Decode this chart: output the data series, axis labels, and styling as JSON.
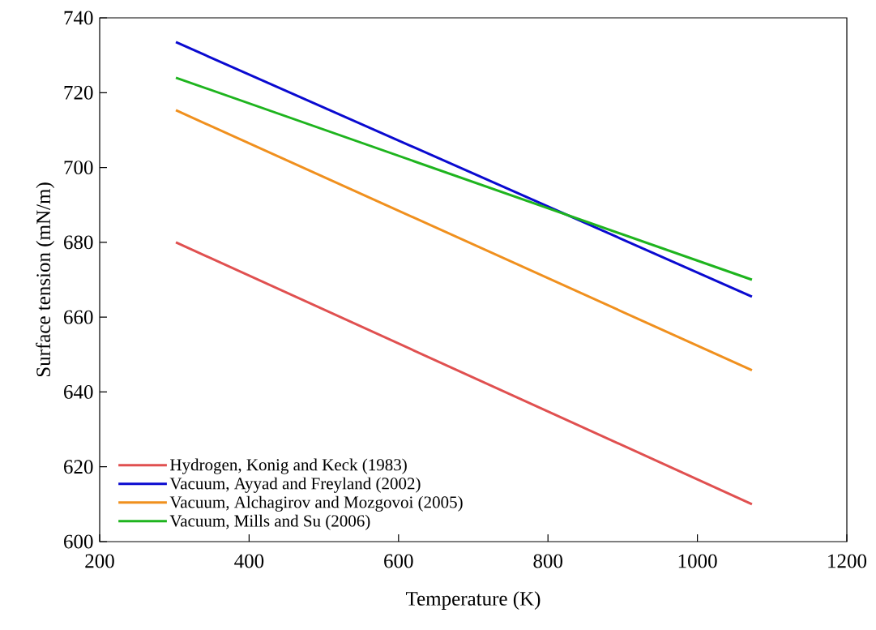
{
  "chart_data": {
    "type": "line",
    "xlabel": "Temperature (K)",
    "ylabel": "Surface tension (mN/m)",
    "xlim": [
      200,
      1200
    ],
    "xticks": [
      200,
      400,
      600,
      800,
      1000,
      1200
    ],
    "ylim": [
      600,
      740
    ],
    "yticks": [
      600,
      620,
      640,
      660,
      680,
      700,
      720,
      740
    ],
    "legend": "bottom left",
    "grid": false,
    "x": [
      302,
      1073
    ],
    "series": [
      {
        "name": "Hydrogen, Konig and Keck (1983)",
        "color": "#e05050",
        "values": [
          680,
          610
        ]
      },
      {
        "name": "Vacuum, Ayyad and Freyland (2002)",
        "color": "#0a0ad0",
        "values": [
          733.5,
          665.5
        ]
      },
      {
        "name": "Vacuum, Alchagirov and Mozgovoi (2005)",
        "color": "#f0901e",
        "values": [
          715.3,
          645.8
        ]
      },
      {
        "name": "Vacuum, Mills and Su (2006)",
        "color": "#1eb41e",
        "values": [
          724,
          670
        ]
      }
    ]
  }
}
